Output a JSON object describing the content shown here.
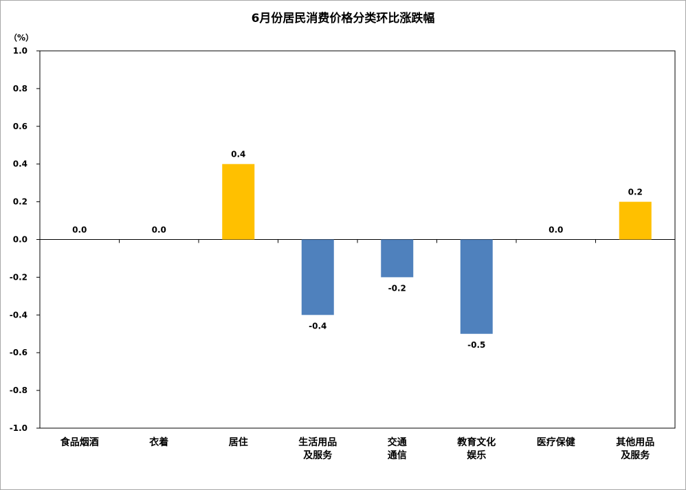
{
  "chart_data": {
    "type": "bar",
    "title": "6月份居民消费价格分类环比涨跌幅",
    "unit_label": "（%）",
    "ylim": [
      -1.0,
      1.0
    ],
    "ytick_step": 0.2,
    "grid": false,
    "legend": "none",
    "categories": [
      [
        "食品烟酒"
      ],
      [
        "衣着"
      ],
      [
        "居住"
      ],
      [
        "生活用品",
        "及服务"
      ],
      [
        "交通",
        "通信"
      ],
      [
        "教育文化",
        "娱乐"
      ],
      [
        "医疗保健"
      ],
      [
        "其他用品",
        "及服务"
      ]
    ],
    "values": [
      0.0,
      0.0,
      0.4,
      -0.4,
      -0.2,
      -0.5,
      0.0,
      0.2
    ],
    "colors": {
      "positive": "#ffc000",
      "negative": "#4f81bd",
      "axis": "#000000"
    }
  }
}
